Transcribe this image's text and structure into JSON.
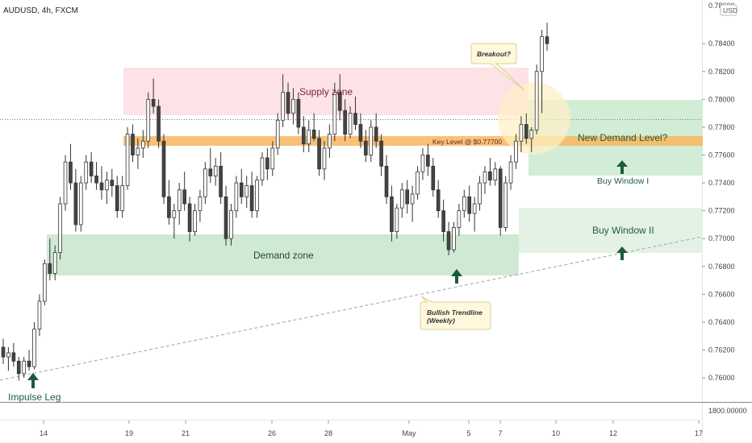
{
  "header": {
    "symbol_label": "AUDUSD, 4h, FXCM"
  },
  "price_axis": {
    "currency_badge": "USD",
    "ticks": [
      "0.76000",
      "0.76200",
      "0.76400",
      "0.76600",
      "0.76800",
      "0.77000",
      "0.77200",
      "0.77400",
      "0.77600",
      "0.77800",
      "0.78000",
      "0.78200",
      "0.78400"
    ],
    "top_value": "0.78600",
    "indicator_value": "1800.00000"
  },
  "time_axis": {
    "ticks": [
      "14",
      "19",
      "21",
      "26",
      "28",
      "May",
      "5",
      "7",
      "10",
      "12",
      "17"
    ]
  },
  "annotations": {
    "supply_zone": "Supply zone",
    "demand_zone": "Demand zone",
    "key_level": "Key Level @ $0.77700",
    "new_demand": "New Demand Level?",
    "buy_window_1": "Buy Window I",
    "buy_window_2": "Buy Window II",
    "breakout": "Breakout?",
    "trendline_1": "Bullish Trendline",
    "trendline_2": "(Weekly)",
    "impulse": "Impulse Leg"
  },
  "colors": {
    "up": "#ffffff",
    "down": "#444444",
    "wick": "#333333",
    "supply": "#fde2e6",
    "demand": "#cfe9d3",
    "key_level": "#f9b65e",
    "arrow": "#1e5a3a",
    "label_green": "#1f5e3a"
  },
  "chart_data": {
    "type": "candlestick",
    "title": "AUDUSD, 4h, FXCM",
    "ylim": [
      0.7585,
      0.7865
    ],
    "x_ticks": [
      "14",
      "19",
      "21",
      "26",
      "28",
      "May",
      "5",
      "7",
      "10",
      "12",
      "17"
    ],
    "zones": {
      "supply": [
        0.7785,
        0.7818
      ],
      "key_level": [
        0.7764,
        0.7771
      ],
      "demand": [
        0.7674,
        0.7703
      ],
      "new_demand": [
        0.7743,
        0.7796
      ],
      "buy_window_2": [
        0.7689,
        0.7722
      ]
    },
    "ohlc": [
      [
        0.7622,
        0.7628,
        0.761,
        0.7615
      ],
      [
        0.7615,
        0.7622,
        0.7605,
        0.7618
      ],
      [
        0.7618,
        0.7625,
        0.7608,
        0.7612
      ],
      [
        0.7612,
        0.7615,
        0.7598,
        0.7603
      ],
      [
        0.7603,
        0.7615,
        0.76,
        0.7612
      ],
      [
        0.7612,
        0.762,
        0.7605,
        0.7608
      ],
      [
        0.7608,
        0.764,
        0.7606,
        0.7635
      ],
      [
        0.7635,
        0.766,
        0.763,
        0.7655
      ],
      [
        0.7655,
        0.7685,
        0.7652,
        0.7682
      ],
      [
        0.7682,
        0.77,
        0.767,
        0.7675
      ],
      [
        0.7675,
        0.7695,
        0.767,
        0.769
      ],
      [
        0.769,
        0.773,
        0.7685,
        0.7725
      ],
      [
        0.7725,
        0.776,
        0.772,
        0.7755
      ],
      [
        0.7755,
        0.7768,
        0.7735,
        0.774
      ],
      [
        0.774,
        0.775,
        0.7705,
        0.771
      ],
      [
        0.771,
        0.7745,
        0.7705,
        0.774
      ],
      [
        0.774,
        0.776,
        0.7735,
        0.7755
      ],
      [
        0.7755,
        0.7762,
        0.774,
        0.7745
      ],
      [
        0.7745,
        0.7755,
        0.7735,
        0.774
      ],
      [
        0.774,
        0.7752,
        0.7728,
        0.7735
      ],
      [
        0.7735,
        0.7748,
        0.7725,
        0.7742
      ],
      [
        0.7742,
        0.775,
        0.773,
        0.7738
      ],
      [
        0.7738,
        0.7745,
        0.7715,
        0.772
      ],
      [
        0.772,
        0.7745,
        0.7715,
        0.7738
      ],
      [
        0.7738,
        0.778,
        0.7735,
        0.7775
      ],
      [
        0.7775,
        0.7782,
        0.7755,
        0.776
      ],
      [
        0.776,
        0.7772,
        0.775,
        0.7765
      ],
      [
        0.7765,
        0.7778,
        0.7758,
        0.777
      ],
      [
        0.777,
        0.7805,
        0.7765,
        0.78
      ],
      [
        0.78,
        0.7815,
        0.779,
        0.7795
      ],
      [
        0.7795,
        0.78,
        0.7765,
        0.777
      ],
      [
        0.777,
        0.7775,
        0.7725,
        0.773
      ],
      [
        0.773,
        0.7742,
        0.771,
        0.7715
      ],
      [
        0.7715,
        0.7725,
        0.77,
        0.772
      ],
      [
        0.772,
        0.774,
        0.771,
        0.7735
      ],
      [
        0.7735,
        0.7748,
        0.772,
        0.7725
      ],
      [
        0.7725,
        0.773,
        0.7698,
        0.7705
      ],
      [
        0.7705,
        0.7725,
        0.7702,
        0.772
      ],
      [
        0.772,
        0.7735,
        0.7712,
        0.773
      ],
      [
        0.773,
        0.7755,
        0.7725,
        0.775
      ],
      [
        0.775,
        0.7765,
        0.774,
        0.7745
      ],
      [
        0.7745,
        0.7758,
        0.7738,
        0.7752
      ],
      [
        0.7752,
        0.7762,
        0.7725,
        0.773
      ],
      [
        0.773,
        0.7738,
        0.7695,
        0.77
      ],
      [
        0.77,
        0.7725,
        0.7695,
        0.772
      ],
      [
        0.772,
        0.7745,
        0.7715,
        0.774
      ],
      [
        0.774,
        0.775,
        0.7725,
        0.773
      ],
      [
        0.773,
        0.7745,
        0.7722,
        0.7738
      ],
      [
        0.7738,
        0.7748,
        0.7715,
        0.772
      ],
      [
        0.772,
        0.7745,
        0.7715,
        0.7742
      ],
      [
        0.7742,
        0.7762,
        0.7738,
        0.7758
      ],
      [
        0.7758,
        0.7765,
        0.7742,
        0.775
      ],
      [
        0.775,
        0.777,
        0.7745,
        0.7765
      ],
      [
        0.7765,
        0.779,
        0.776,
        0.7785
      ],
      [
        0.7785,
        0.7818,
        0.778,
        0.7805
      ],
      [
        0.7805,
        0.7812,
        0.7785,
        0.779
      ],
      [
        0.779,
        0.7808,
        0.7782,
        0.78
      ],
      [
        0.78,
        0.7805,
        0.7775,
        0.778
      ],
      [
        0.778,
        0.7788,
        0.7762,
        0.7768
      ],
      [
        0.7768,
        0.7785,
        0.7762,
        0.7778
      ],
      [
        0.7778,
        0.779,
        0.777,
        0.7772
      ],
      [
        0.7772,
        0.7778,
        0.7745,
        0.775
      ],
      [
        0.775,
        0.777,
        0.7742,
        0.7765
      ],
      [
        0.7765,
        0.7782,
        0.7758,
        0.7775
      ],
      [
        0.7775,
        0.7812,
        0.777,
        0.7805
      ],
      [
        0.7805,
        0.7818,
        0.7785,
        0.7792
      ],
      [
        0.7792,
        0.78,
        0.777,
        0.7775
      ],
      [
        0.7775,
        0.7795,
        0.7772,
        0.779
      ],
      [
        0.779,
        0.7802,
        0.7778,
        0.7782
      ],
      [
        0.7782,
        0.779,
        0.7765,
        0.777
      ],
      [
        0.777,
        0.7778,
        0.7755,
        0.776
      ],
      [
        0.776,
        0.7785,
        0.7755,
        0.778
      ],
      [
        0.778,
        0.779,
        0.7765,
        0.777
      ],
      [
        0.777,
        0.7775,
        0.7745,
        0.7752
      ],
      [
        0.7752,
        0.776,
        0.7725,
        0.773
      ],
      [
        0.773,
        0.7738,
        0.7698,
        0.7705
      ],
      [
        0.7705,
        0.7725,
        0.77,
        0.7722
      ],
      [
        0.7722,
        0.774,
        0.7715,
        0.7735
      ],
      [
        0.7735,
        0.7742,
        0.7718,
        0.7725
      ],
      [
        0.7725,
        0.7738,
        0.7712,
        0.7732
      ],
      [
        0.7732,
        0.7752,
        0.7728,
        0.7748
      ],
      [
        0.7748,
        0.7765,
        0.7742,
        0.776
      ],
      [
        0.776,
        0.7768,
        0.7745,
        0.7752
      ],
      [
        0.7752,
        0.7758,
        0.773,
        0.7735
      ],
      [
        0.7735,
        0.7742,
        0.7715,
        0.772
      ],
      [
        0.772,
        0.7728,
        0.7698,
        0.7705
      ],
      [
        0.7705,
        0.7712,
        0.7688,
        0.7692
      ],
      [
        0.7692,
        0.7712,
        0.769,
        0.7708
      ],
      [
        0.7708,
        0.7725,
        0.7702,
        0.772
      ],
      [
        0.772,
        0.7735,
        0.7715,
        0.773
      ],
      [
        0.773,
        0.7738,
        0.7712,
        0.7718
      ],
      [
        0.7718,
        0.773,
        0.7705,
        0.7725
      ],
      [
        0.7725,
        0.7745,
        0.772,
        0.774
      ],
      [
        0.774,
        0.7752,
        0.7732,
        0.7748
      ],
      [
        0.7748,
        0.7758,
        0.7738,
        0.7742
      ],
      [
        0.7742,
        0.7755,
        0.7738,
        0.775
      ],
      [
        0.775,
        0.7752,
        0.7702,
        0.7708
      ],
      [
        0.7708,
        0.7745,
        0.7705,
        0.774
      ],
      [
        0.774,
        0.776,
        0.7735,
        0.7755
      ],
      [
        0.7755,
        0.7775,
        0.775,
        0.777
      ],
      [
        0.777,
        0.7788,
        0.7762,
        0.7782
      ],
      [
        0.7782,
        0.779,
        0.7768,
        0.7772
      ],
      [
        0.7772,
        0.778,
        0.7762,
        0.7778
      ],
      [
        0.7778,
        0.7825,
        0.7775,
        0.782
      ],
      [
        0.782,
        0.785,
        0.779,
        0.7845
      ],
      [
        0.7845,
        0.7855,
        0.7835,
        0.784
      ]
    ]
  }
}
